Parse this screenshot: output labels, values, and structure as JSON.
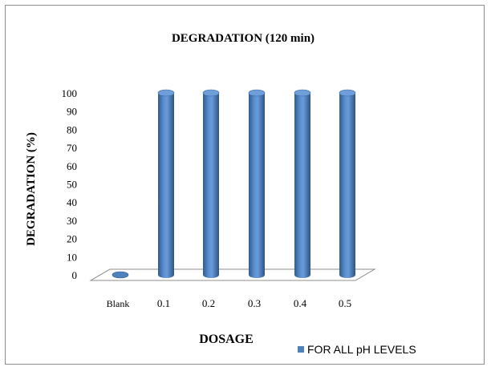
{
  "chart_data": {
    "type": "bar",
    "title": "DEGRADATION (120 min)",
    "xlabel": "DOSAGE",
    "ylabel": "DEGRADATION (%)",
    "categories": [
      "Blank",
      "0.1",
      "0.2",
      "0.3",
      "0.4",
      "0.5"
    ],
    "series": [
      {
        "name": "FOR ALL pH LEVELS",
        "values": [
          0,
          100,
          100,
          100,
          100,
          100
        ],
        "color": "#4f81bd"
      }
    ],
    "ylim": [
      0,
      100
    ],
    "yticks": [
      0,
      10,
      20,
      30,
      40,
      50,
      60,
      70,
      80,
      90,
      100
    ],
    "grid": false,
    "legend_position": "bottom-right",
    "style": "3d-cylinder"
  }
}
